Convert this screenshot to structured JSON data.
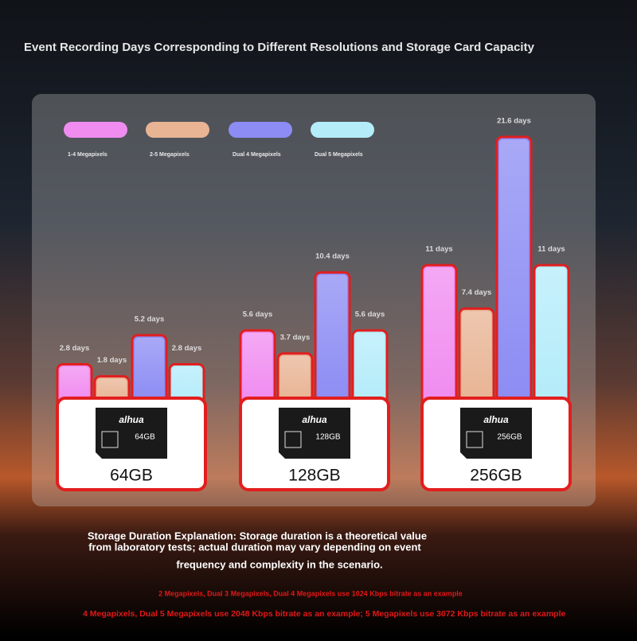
{
  "chart_data": {
    "type": "bar",
    "title": "Event Recording Days Corresponding to Different Resolutions and Storage Card Capacity",
    "categories": [
      "64GB",
      "128GB",
      "256GB"
    ],
    "card_brand": "alhua",
    "series": [
      {
        "name": "1-4 Megapixels",
        "color": "#f08cf0",
        "values": [
          2.8,
          5.6,
          11
        ],
        "value_labels": [
          "2.8 days",
          "5.6 days",
          "11 days"
        ]
      },
      {
        "name": "2-5 Megapixels",
        "color": "#e8b494",
        "values": [
          1.8,
          3.7,
          7.4
        ],
        "value_labels": [
          "1.8 days",
          "3.7 days",
          "7.4 days"
        ]
      },
      {
        "name": "Dual 4 Megapixels",
        "color": "#8c8cf4",
        "values": [
          5.2,
          10.4,
          21.6
        ],
        "value_labels": [
          "5.2 days",
          "10.4 days",
          "21.6 days"
        ]
      },
      {
        "name": "Dual 5 Megapixels",
        "color": "#b4ecfa",
        "values": [
          2.8,
          5.6,
          11
        ],
        "value_labels": [
          "2.8 days",
          "5.6 days",
          "11 days"
        ]
      }
    ],
    "note": [
      "Storage Duration Explanation: Storage duration is a theoretical value",
      "from laboratory tests; actual duration may vary depending on event",
      "frequency and complexity in the scenario."
    ],
    "footnotes": [
      "2 Megapixels, Dual 3 Megapixels, Dual 4 Megapixels use 1024 Kbps bitrate as an example",
      "4 Megapixels, Dual 5 Megapixels use 2048 Kbps bitrate as an example; 5 Megapixels use 3072 Kbps bitrate as an example"
    ]
  }
}
